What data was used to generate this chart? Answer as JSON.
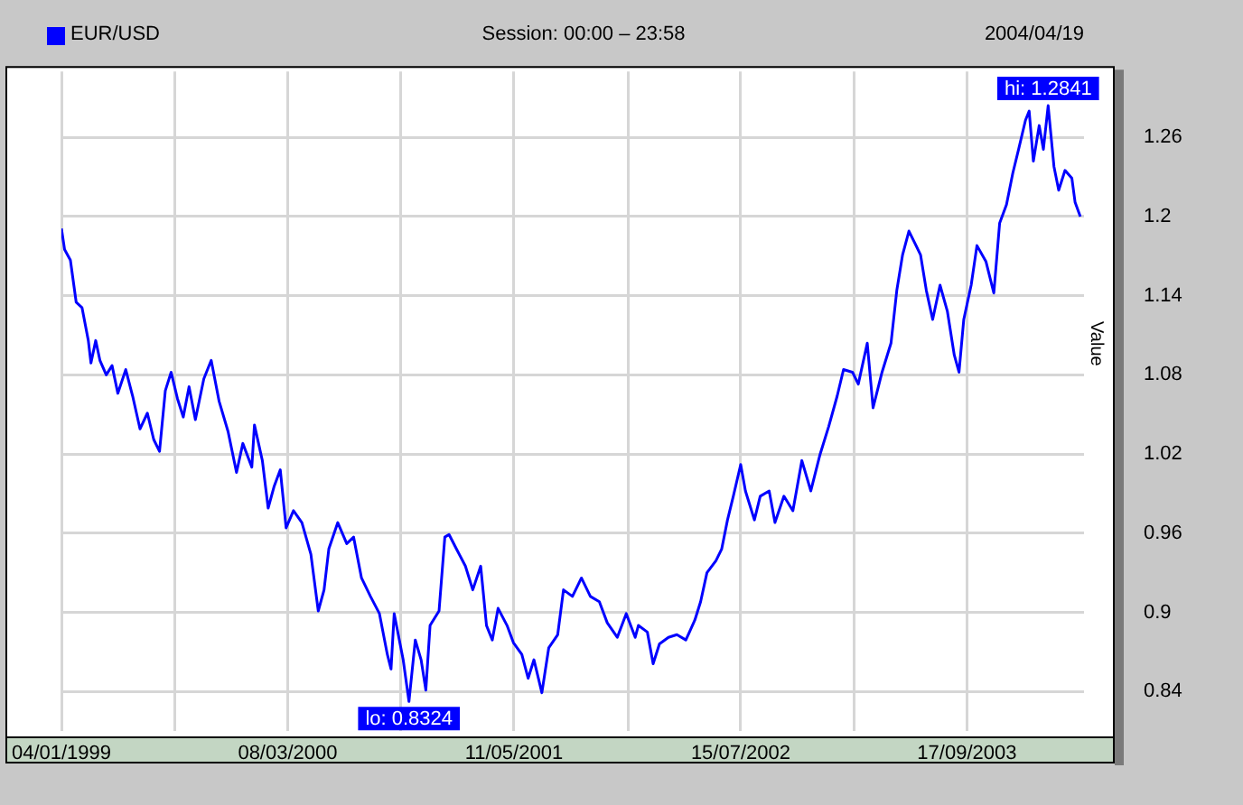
{
  "chart_data": {
    "type": "line",
    "subtitle": "Session: 00:00 – 23:58",
    "ylabel": "Value",
    "legend": "top left",
    "grid": true,
    "marker": "none",
    "line_style": "solid",
    "annotations": [
      "2004/04/19",
      {
        "text": "hi: 1.2841",
        "x": "2004-02-18",
        "y": 1.2841
      },
      {
        "text": "lo: 0.8324",
        "x": "2000-10-24",
        "y": 0.8324
      }
    ],
    "xlim": [
      "1999-01-04",
      "2004-04-26"
    ],
    "xticks": [
      {
        "value": "1999-01-04",
        "label": "04/01/1999"
      },
      {
        "value": "1999-08-07",
        "label": null
      },
      {
        "value": "2000-03-08",
        "label": "08/03/2000"
      },
      {
        "value": "2000-10-08",
        "label": null
      },
      {
        "value": "2001-05-11",
        "label": "11/05/2001"
      },
      {
        "value": "2001-12-13",
        "label": null
      },
      {
        "value": "2002-07-15",
        "label": "15/07/2002"
      },
      {
        "value": "2003-02-15",
        "label": null
      },
      {
        "value": "2003-09-17",
        "label": "17/09/2003"
      }
    ],
    "ylim": [
      0.81,
      1.31
    ],
    "yticks": [
      0.84,
      0.9,
      0.96,
      1.02,
      1.08,
      1.14,
      1.2,
      1.26
    ],
    "x": [
      "1999-01-04",
      "1999-01-10",
      "1999-01-21",
      "1999-02-01",
      "1999-02-12",
      "1999-02-24",
      "1999-03-01",
      "1999-03-10",
      "1999-03-18",
      "1999-03-30",
      "1999-04-10",
      "1999-04-21",
      "1999-05-06",
      "1999-05-19",
      "1999-06-02",
      "1999-06-16",
      "1999-06-28",
      "1999-07-09",
      "1999-07-20",
      "1999-07-31",
      "1999-08-12",
      "1999-08-23",
      "1999-09-03",
      "1999-09-15",
      "1999-10-01",
      "1999-10-15",
      "1999-10-30",
      "1999-11-16",
      "1999-12-02",
      "1999-12-14",
      "1999-12-31",
      "2000-01-05",
      "2000-01-20",
      "2000-01-31",
      "2000-02-11",
      "2000-02-23",
      "2000-03-05",
      "2000-03-19",
      "2000-04-04",
      "2000-04-21",
      "2000-05-05",
      "2000-05-16",
      "2000-05-25",
      "2000-06-11",
      "2000-06-28",
      "2000-07-11",
      "2000-07-26",
      "2000-08-12",
      "2000-08-29",
      "2000-09-13",
      "2000-09-20",
      "2000-09-26",
      "2000-10-13",
      "2000-10-24",
      "2000-11-05",
      "2000-11-16",
      "2000-11-25",
      "2000-12-03",
      "2000-12-20",
      "2000-12-31",
      "2001-01-08",
      "2001-01-22",
      "2001-02-08",
      "2001-02-22",
      "2001-03-09",
      "2001-03-20",
      "2001-03-31",
      "2001-04-11",
      "2001-04-28",
      "2001-05-10",
      "2001-05-26",
      "2001-06-07",
      "2001-06-18",
      "2001-07-03",
      "2001-07-16",
      "2001-08-02",
      "2001-08-13",
      "2001-08-30",
      "2001-09-16",
      "2001-10-03",
      "2001-10-20",
      "2001-11-04",
      "2001-11-23",
      "2001-12-10",
      "2001-12-27",
      "2002-01-02",
      "2002-01-19",
      "2002-01-30",
      "2002-02-11",
      "2002-02-28",
      "2002-03-16",
      "2002-04-02",
      "2002-04-19",
      "2002-04-30",
      "2002-05-12",
      "2002-05-29",
      "2002-06-09",
      "2002-06-20",
      "2002-07-01",
      "2002-07-15",
      "2002-07-24",
      "2002-08-10",
      "2002-08-21",
      "2002-09-07",
      "2002-09-18",
      "2002-10-05",
      "2002-10-22",
      "2002-11-08",
      "2002-11-25",
      "2002-12-12",
      "2002-12-29",
      "2003-01-14",
      "2003-01-26",
      "2003-02-12",
      "2003-02-23",
      "2003-03-12",
      "2003-03-23",
      "2003-04-09",
      "2003-04-26",
      "2003-05-07",
      "2003-05-18",
      "2003-05-30",
      "2003-06-10",
      "2003-06-21",
      "2003-07-02",
      "2003-07-14",
      "2003-07-28",
      "2003-08-11",
      "2003-08-24",
      "2003-09-02",
      "2003-09-11",
      "2003-09-25",
      "2003-10-06",
      "2003-10-23",
      "2003-11-07",
      "2003-11-18",
      "2003-12-01",
      "2003-12-13",
      "2003-12-24",
      "2004-01-06",
      "2004-01-13",
      "2004-01-21",
      "2004-02-01",
      "2004-02-09",
      "2004-02-18",
      "2004-02-29",
      "2004-03-09",
      "2004-03-21",
      "2004-04-03",
      "2004-04-09",
      "2004-04-19"
    ],
    "series": [
      {
        "name": "EUR/USD",
        "color": "#0000ff",
        "values": [
          1.191,
          1.175,
          1.167,
          1.135,
          1.131,
          1.106,
          1.089,
          1.106,
          1.091,
          1.08,
          1.087,
          1.066,
          1.084,
          1.064,
          1.039,
          1.051,
          1.031,
          1.022,
          1.068,
          1.082,
          1.062,
          1.048,
          1.071,
          1.046,
          1.077,
          1.091,
          1.06,
          1.037,
          1.006,
          1.028,
          1.01,
          1.042,
          1.015,
          0.979,
          0.995,
          1.008,
          0.964,
          0.977,
          0.968,
          0.944,
          0.901,
          0.917,
          0.948,
          0.968,
          0.952,
          0.957,
          0.926,
          0.912,
          0.899,
          0.868,
          0.857,
          0.899,
          0.864,
          0.8324,
          0.879,
          0.864,
          0.841,
          0.89,
          0.901,
          0.957,
          0.959,
          0.948,
          0.935,
          0.917,
          0.935,
          0.89,
          0.879,
          0.903,
          0.89,
          0.877,
          0.868,
          0.85,
          0.864,
          0.839,
          0.873,
          0.883,
          0.917,
          0.912,
          0.926,
          0.912,
          0.908,
          0.892,
          0.881,
          0.899,
          0.881,
          0.89,
          0.885,
          0.861,
          0.876,
          0.881,
          0.883,
          0.879,
          0.894,
          0.908,
          0.93,
          0.939,
          0.948,
          0.97,
          0.988,
          1.012,
          0.992,
          0.97,
          0.988,
          0.992,
          0.968,
          0.988,
          0.977,
          1.015,
          0.992,
          1.019,
          1.041,
          1.064,
          1.084,
          1.082,
          1.073,
          1.104,
          1.055,
          1.082,
          1.104,
          1.144,
          1.171,
          1.189,
          1.18,
          1.171,
          1.144,
          1.122,
          1.148,
          1.128,
          1.095,
          1.082,
          1.122,
          1.148,
          1.178,
          1.166,
          1.142,
          1.195,
          1.209,
          1.233,
          1.251,
          1.273,
          1.28,
          1.242,
          1.269,
          1.251,
          1.2841,
          1.238,
          1.22,
          1.235,
          1.229,
          1.211,
          1.2
        ]
      }
    ]
  }
}
